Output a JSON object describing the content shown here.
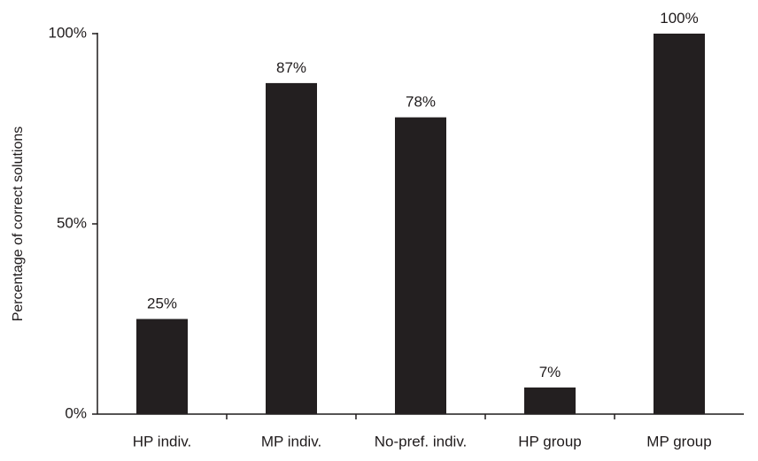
{
  "chart_data": {
    "type": "bar",
    "categories": [
      "HP indiv.",
      "MP indiv.",
      "No-pref. indiv.",
      "HP group",
      "MP group"
    ],
    "values": [
      25,
      87,
      78,
      7,
      100
    ],
    "data_labels": [
      "25%",
      "87%",
      "78%",
      "7%",
      "100%"
    ],
    "title": "",
    "xlabel": "",
    "ylabel": "Percentage of correct solutions",
    "ylim": [
      0,
      100
    ],
    "yticks": [
      {
        "value": 0,
        "label": "0%"
      },
      {
        "value": 50,
        "label": "50%"
      },
      {
        "value": 100,
        "label": "100%"
      }
    ],
    "grid": false,
    "legend": "none",
    "bar_color": "#231f20"
  }
}
